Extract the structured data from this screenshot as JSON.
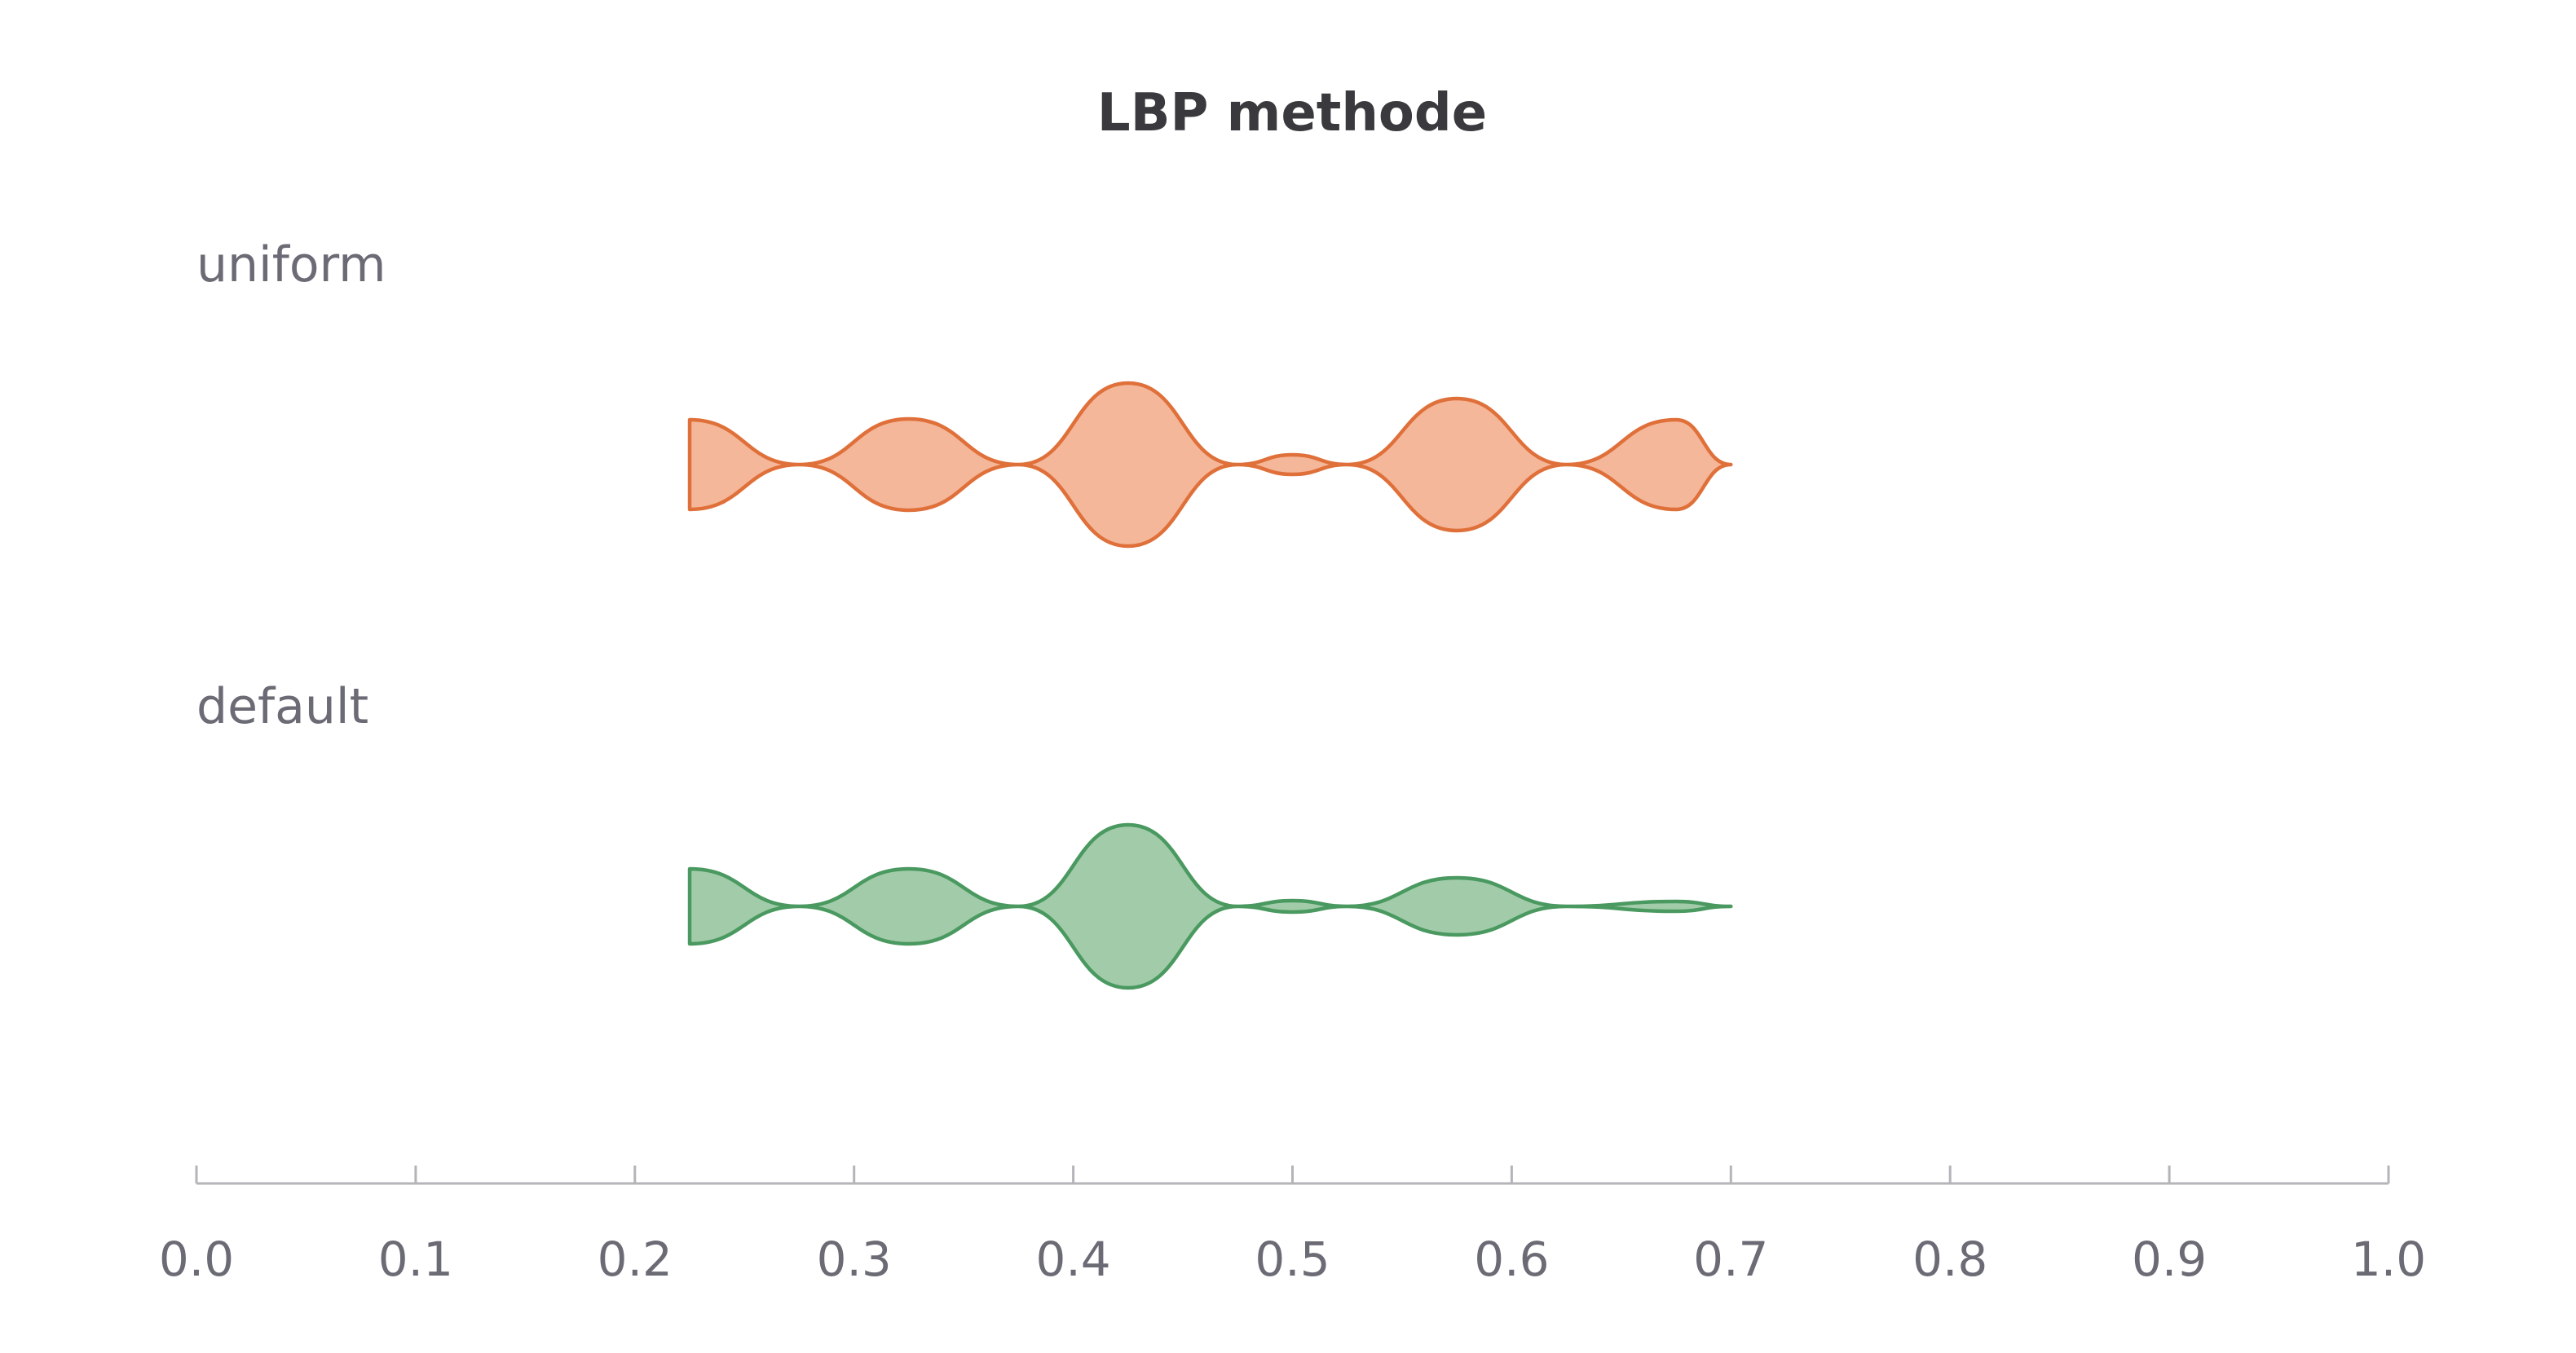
{
  "chart_data": {
    "type": "violin",
    "title": "LBP methode",
    "xlim": [
      0.0,
      1.0
    ],
    "xticks": [
      0.0,
      0.1,
      0.2,
      0.3,
      0.4,
      0.5,
      0.6,
      0.7,
      0.8,
      0.9,
      1.0
    ],
    "xtick_labels": [
      "0.0",
      "0.1",
      "0.2",
      "0.3",
      "0.4",
      "0.5",
      "0.6",
      "0.7",
      "0.8",
      "0.9",
      "1.0"
    ],
    "categories": [
      "uniform",
      "default"
    ],
    "series": [
      {
        "name": "uniform",
        "stroke": "#e0703a",
        "fill": "#f4b79a",
        "density": {
          "x": [
            0.225,
            0.275,
            0.325,
            0.375,
            0.425,
            0.475,
            0.5,
            0.525,
            0.575,
            0.625,
            0.675,
            0.7
          ],
          "y": [
            0.55,
            0.0,
            0.56,
            0.0,
            1.0,
            0.0,
            0.12,
            0.0,
            0.81,
            0.0,
            0.55,
            0.0
          ]
        }
      },
      {
        "name": "default",
        "stroke": "#4a9960",
        "fill": "#a2cca9",
        "density": {
          "x": [
            0.225,
            0.275,
            0.325,
            0.375,
            0.425,
            0.475,
            0.5,
            0.525,
            0.575,
            0.625,
            0.675,
            0.7
          ],
          "y": [
            0.46,
            0.0,
            0.46,
            0.0,
            1.0,
            0.0,
            0.07,
            0.0,
            0.35,
            0.0,
            0.06,
            0.0
          ]
        }
      }
    ]
  }
}
